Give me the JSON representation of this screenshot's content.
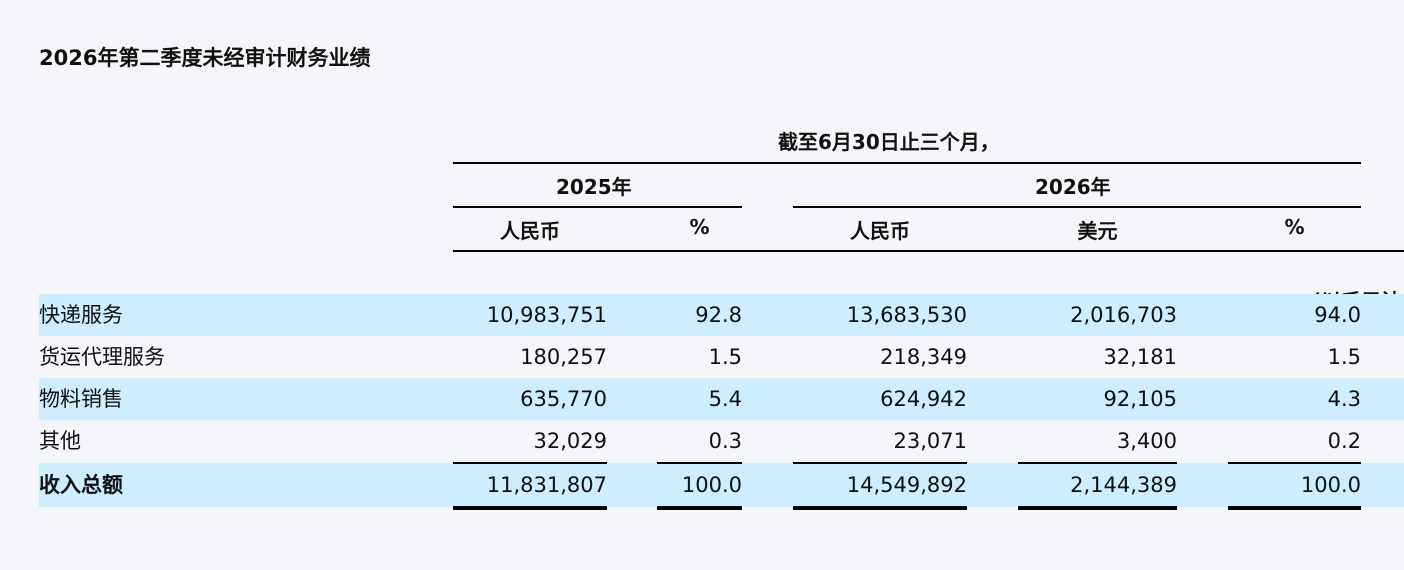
{
  "title": "2026年第二季度未经审计财务业绩",
  "header": {
    "period": "截至6月30日止三个月，",
    "year_2025": "2025年",
    "year_2026": "2026年",
    "col_rmb_2025": "人民币",
    "col_pct_2025": "%",
    "col_rmb_2026": "人民币",
    "col_usd_2026": "美元",
    "col_pct_2026": "%",
    "unit_note": "(以千元计"
  },
  "rows": [
    {
      "label": "快递服务",
      "rmb_2025": "10,983,751",
      "pct_2025": "92.8",
      "rmb_2026": "13,683,530",
      "usd_2026": "2,016,703",
      "pct_2026": "94.0"
    },
    {
      "label": "货运代理服务",
      "rmb_2025": "180,257",
      "pct_2025": "1.5",
      "rmb_2026": "218,349",
      "usd_2026": "32,181",
      "pct_2026": "1.5"
    },
    {
      "label": "物料销售",
      "rmb_2025": "635,770",
      "pct_2025": "5.4",
      "rmb_2026": "624,942",
      "usd_2026": "92,105",
      "pct_2026": "4.3"
    },
    {
      "label": "其他",
      "rmb_2025": "32,029",
      "pct_2025": "0.3",
      "rmb_2026": "23,071",
      "usd_2026": "3,400",
      "pct_2026": "0.2"
    }
  ],
  "total": {
    "label": "收入总额",
    "rmb_2025": "11,831,807",
    "pct_2025": "100.0",
    "rmb_2026": "14,549,892",
    "usd_2026": "2,144,389",
    "pct_2026": "100.0"
  },
  "colors": {
    "background": "#f4f6fa",
    "row_highlight": "#cdeefd",
    "text": "#111111"
  }
}
